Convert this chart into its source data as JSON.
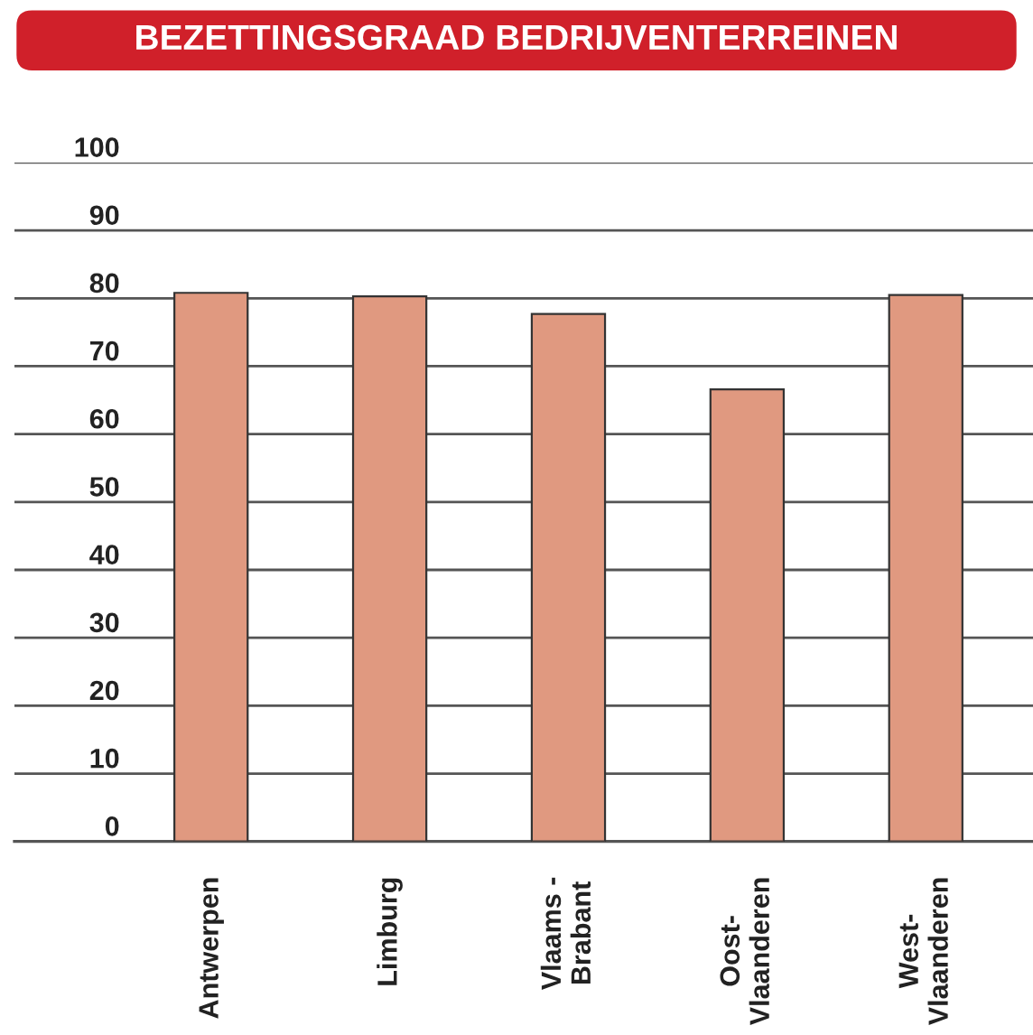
{
  "chart_data": {
    "type": "bar",
    "title": "BEZETTINGSGRAAD BEDRIJVENTERREINEN",
    "categories": [
      "Antwerpen",
      "Limburg",
      "Vlaams -\nBrabant",
      "Oost-\nVlaanderen",
      "West-\nVlaanderen"
    ],
    "values": [
      80.8,
      80.3,
      77.7,
      66.6,
      80.5
    ],
    "color": "#e09980",
    "ylim": [
      0,
      100
    ],
    "yticks": [
      0,
      10,
      20,
      30,
      40,
      50,
      60,
      70,
      80,
      90,
      100
    ],
    "grid": "y",
    "legend": false
  }
}
